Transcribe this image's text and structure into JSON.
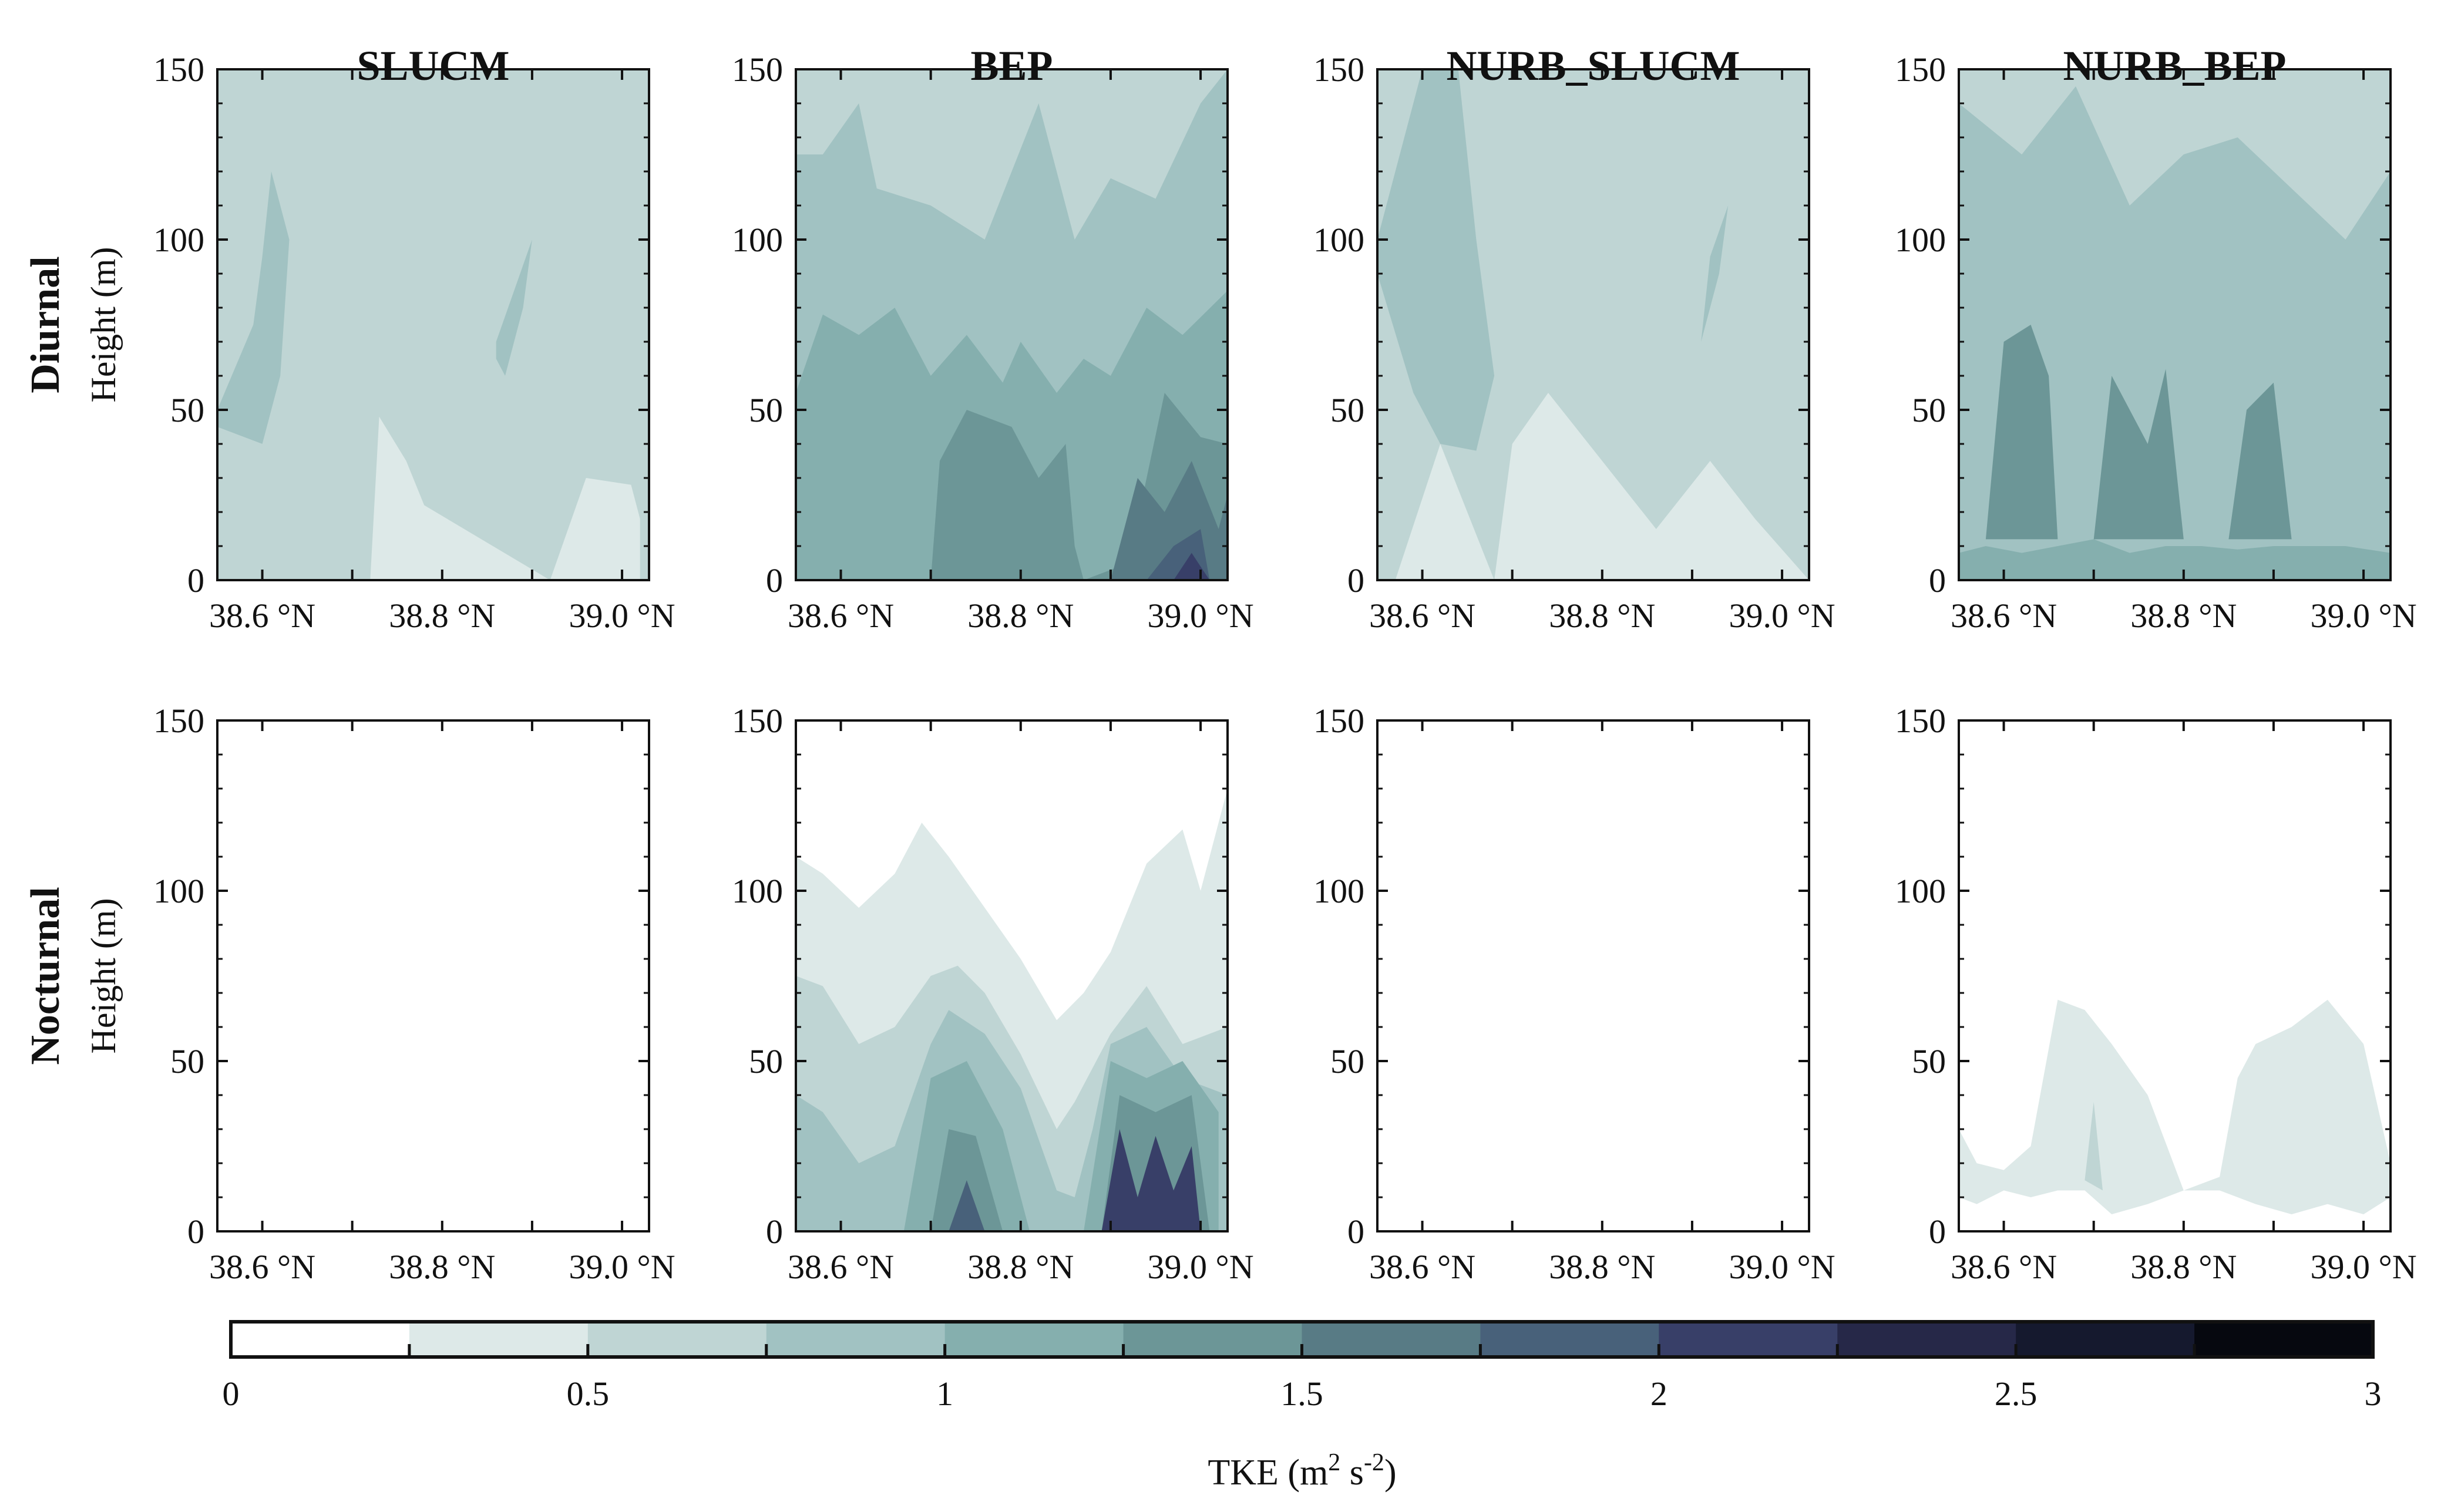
{
  "chart_data": {
    "type": "heatmap",
    "variable": "TKE",
    "colorbar": {
      "label": "TKE (m",
      "label_sup": "2",
      "label_mid": " s",
      "label_sup2": "-2",
      "label_end": ")",
      "min": 0,
      "max": 3,
      "step": 0.25,
      "tick_labels": [
        "0",
        "0.5",
        "1",
        "1.5",
        "2",
        "2.5",
        "3"
      ],
      "colors": [
        "#ffffff",
        "#dde9e8",
        "#bfd5d4",
        "#a1c2c2",
        "#85afae",
        "#6c9697",
        "#587b85",
        "#48617a",
        "#383f68",
        "#262848",
        "#15192e",
        "#06080f"
      ]
    },
    "columns": [
      "SLUCM",
      "BEP",
      "NURB_SLUCM",
      "NURB_BEP"
    ],
    "rows": [
      {
        "title": "Diurnal",
        "ylabel": "Height (m)"
      },
      {
        "title": "Nocturnal",
        "ylabel": "Height (m)"
      }
    ],
    "x_axis": {
      "range": [
        38.55,
        39.03
      ],
      "ticks": [
        38.6,
        38.8,
        39.0
      ],
      "tick_labels": [
        "38.6 °N",
        "38.8 °N",
        "39.0 °N"
      ]
    },
    "y_axis": {
      "range": [
        0,
        150
      ],
      "ticks": [
        0,
        50,
        100,
        150
      ],
      "tick_labels": [
        "0",
        "50",
        "100",
        "150"
      ]
    },
    "panels": [
      {
        "id": "diurnal-slucm",
        "bg_level": 2,
        "layers": [
          {
            "level": 1,
            "x": [
              38.72,
              38.73,
              38.76,
              38.78,
              38.92,
              38.96,
              39.01,
              39.02,
              39.02,
              38.8,
              38.62
            ],
            "h": [
              0,
              48,
              35,
              22,
              0,
              30,
              28,
              18,
              0,
              0,
              0
            ]
          },
          {
            "level": 3,
            "x": [
              38.55,
              38.59,
              38.6,
              38.61,
              38.63,
              38.62,
              38.6,
              38.58,
              38.55
            ],
            "h": [
              50,
              75,
              95,
              120,
              100,
              60,
              40,
              42,
              45
            ]
          },
          {
            "level": 3,
            "x": [
              38.86,
              38.88,
              38.9,
              38.89,
              38.87,
              38.86
            ],
            "h": [
              70,
              85,
              100,
              80,
              60,
              65
            ]
          }
        ]
      },
      {
        "id": "diurnal-bep",
        "bg_level": 3,
        "layers": [
          {
            "level": 2,
            "x": [
              38.55,
              38.58,
              38.62,
              38.64,
              38.7,
              38.76,
              38.82,
              38.86,
              38.9,
              38.95,
              39.0,
              39.03,
              39.03,
              38.55
            ],
            "h": [
              125,
              125,
              140,
              115,
              110,
              100,
              140,
              100,
              118,
              112,
              140,
              150,
              150,
              150
            ]
          },
          {
            "level": 4,
            "x": [
              38.55,
              38.58,
              38.62,
              38.66,
              38.7,
              38.74,
              38.78,
              38.8,
              38.84,
              38.87,
              38.9,
              38.94,
              38.98,
              39.03,
              39.03,
              38.55
            ],
            "h": [
              55,
              78,
              72,
              80,
              60,
              72,
              58,
              70,
              55,
              65,
              60,
              80,
              72,
              85,
              0,
              0
            ]
          },
          {
            "level": 5,
            "x": [
              38.7,
              38.71,
              38.74,
              38.79,
              38.82,
              38.85,
              38.86,
              38.87,
              38.92,
              38.96,
              39.0,
              39.03,
              39.03,
              38.7
            ],
            "h": [
              0,
              35,
              50,
              45,
              30,
              40,
              10,
              0,
              5,
              55,
              42,
              40,
              0,
              0
            ]
          },
          {
            "level": 6,
            "x": [
              38.9,
              38.93,
              38.96,
              38.99,
              39.02,
              39.03,
              39.03,
              38.9
            ],
            "h": [
              0,
              30,
              20,
              35,
              15,
              25,
              0,
              0
            ]
          },
          {
            "level": 7,
            "x": [
              38.94,
              38.97,
              39.0,
              39.01,
              38.94
            ],
            "h": [
              0,
              10,
              15,
              0,
              0
            ]
          },
          {
            "level": 8,
            "x": [
              38.97,
              38.99,
              39.01,
              38.97
            ],
            "h": [
              0,
              8,
              0,
              0
            ]
          }
        ]
      },
      {
        "id": "diurnal-nurb-slucm",
        "bg_level": 2,
        "layers": [
          {
            "level": 1,
            "x": [
              38.57,
              38.62,
              38.68,
              38.7,
              38.74,
              38.8,
              38.86,
              38.92,
              38.97,
              39.03,
              39.03,
              38.57
            ],
            "h": [
              0,
              40,
              0,
              40,
              55,
              35,
              15,
              35,
              18,
              0,
              0,
              0
            ]
          },
          {
            "level": 3,
            "x": [
              38.55,
              38.59,
              38.62,
              38.66,
              38.68,
              38.66,
              38.64,
              38.6,
              38.57,
              38.55
            ],
            "h": [
              90,
              55,
              40,
              38,
              60,
              100,
              150,
              150,
              120,
              100
            ]
          },
          {
            "level": 3,
            "x": [
              38.91,
              38.93,
              38.94,
              38.92,
              38.91
            ],
            "h": [
              70,
              90,
              110,
              95,
              70
            ]
          }
        ]
      },
      {
        "id": "diurnal-nurb-bep",
        "bg_level": 3,
        "layers": [
          {
            "level": 2,
            "x": [
              38.55,
              38.62,
              38.68,
              38.74,
              38.8,
              38.86,
              38.92,
              38.98,
              39.03,
              39.03,
              38.55
            ],
            "h": [
              140,
              125,
              145,
              110,
              125,
              130,
              115,
              100,
              120,
              150,
              150
            ]
          },
          {
            "level": 4,
            "x": [
              38.55,
              38.58,
              38.62,
              38.66,
              38.7,
              38.74,
              38.78,
              38.82,
              38.86,
              38.9,
              38.94,
              38.98,
              39.03,
              39.03,
              38.55
            ],
            "h": [
              8,
              10,
              8,
              10,
              12,
              8,
              10,
              10,
              9,
              10,
              10,
              10,
              8,
              0,
              0
            ]
          },
          {
            "level": 5,
            "x": [
              38.58,
              38.6,
              38.63,
              38.65,
              38.66,
              38.58
            ],
            "h": [
              12,
              70,
              75,
              60,
              12,
              12
            ]
          },
          {
            "level": 5,
            "x": [
              38.7,
              38.72,
              38.76,
              38.78,
              38.8,
              38.7
            ],
            "h": [
              12,
              60,
              40,
              62,
              12,
              12
            ]
          },
          {
            "level": 5,
            "x": [
              38.85,
              38.87,
              38.9,
              38.92,
              38.85
            ],
            "h": [
              12,
              50,
              58,
              12,
              12
            ]
          }
        ]
      },
      {
        "id": "nocturnal-slucm",
        "bg_level": 0,
        "layers": []
      },
      {
        "id": "nocturnal-bep",
        "bg_level": 0,
        "layers": [
          {
            "level": 1,
            "x": [
              38.55,
              38.58,
              38.62,
              38.66,
              38.69,
              38.72,
              38.76,
              38.8,
              38.84,
              38.87,
              38.9,
              38.94,
              38.98,
              39.0,
              39.03,
              39.03,
              38.55
            ],
            "h": [
              110,
              105,
              95,
              105,
              120,
              110,
              95,
              80,
              62,
              70,
              82,
              108,
              118,
              100,
              130,
              0,
              0
            ]
          },
          {
            "level": 2,
            "x": [
              38.55,
              38.58,
              38.62,
              38.66,
              38.7,
              38.73,
              38.76,
              38.8,
              38.84,
              38.86,
              38.9,
              38.94,
              38.98,
              39.03,
              39.03,
              38.55
            ],
            "h": [
              75,
              72,
              55,
              60,
              75,
              78,
              70,
              52,
              30,
              38,
              58,
              72,
              55,
              60,
              0,
              0
            ]
          },
          {
            "level": 3,
            "x": [
              38.55,
              38.58,
              38.62,
              38.66,
              38.7,
              38.72,
              38.76,
              38.8,
              38.84,
              38.86,
              38.88,
              38.9,
              38.94,
              38.98,
              39.03,
              39.03,
              38.55
            ],
            "h": [
              40,
              35,
              20,
              25,
              55,
              65,
              58,
              42,
              12,
              10,
              30,
              55,
              60,
              45,
              40,
              0,
              0
            ]
          },
          {
            "level": 4,
            "x": [
              38.67,
              38.7,
              38.74,
              38.78,
              38.81,
              38.67
            ],
            "h": [
              0,
              45,
              50,
              30,
              0,
              0
            ]
          },
          {
            "level": 4,
            "x": [
              38.87,
              38.9,
              38.94,
              38.98,
              39.02,
              39.02,
              38.87
            ],
            "h": [
              0,
              50,
              45,
              50,
              35,
              0,
              0
            ]
          },
          {
            "level": 5,
            "x": [
              38.7,
              38.72,
              38.75,
              38.78,
              38.7
            ],
            "h": [
              0,
              30,
              28,
              0,
              0
            ]
          },
          {
            "level": 5,
            "x": [
              38.89,
              38.91,
              38.95,
              38.99,
              39.01,
              38.89
            ],
            "h": [
              0,
              40,
              35,
              40,
              0,
              0
            ]
          },
          {
            "level": 7,
            "x": [
              38.72,
              38.74,
              38.76,
              38.72
            ],
            "h": [
              0,
              15,
              0,
              0
            ]
          },
          {
            "level": 8,
            "x": [
              38.89,
              38.91,
              38.93,
              38.95,
              38.97,
              38.99,
              39.0,
              38.89
            ],
            "h": [
              0,
              30,
              10,
              28,
              12,
              25,
              0,
              0
            ]
          }
        ]
      },
      {
        "id": "nocturnal-nurb-slucm",
        "bg_level": 0,
        "layers": []
      },
      {
        "id": "nocturnal-nurb-bep",
        "bg_level": 0,
        "layers": [
          {
            "level": 1,
            "x": [
              38.55,
              38.57,
              38.6,
              38.63,
              38.66,
              38.69,
              38.72,
              38.76,
              38.8,
              38.84,
              38.86,
              38.88,
              38.92,
              38.96,
              39.0,
              39.03,
              39.03,
              39.0,
              38.96,
              38.92,
              38.88,
              38.84,
              38.8,
              38.76,
              38.72,
              38.69,
              38.66,
              38.63,
              38.6,
              38.57,
              38.55
            ],
            "h": [
              30,
              20,
              18,
              25,
              68,
              65,
              55,
              40,
              12,
              16,
              45,
              55,
              60,
              68,
              55,
              20,
              10,
              5,
              8,
              5,
              8,
              12,
              12,
              8,
              5,
              12,
              12,
              10,
              12,
              8,
              10
            ]
          },
          {
            "level": 2,
            "x": [
              38.69,
              38.7,
              38.71,
              38.69
            ],
            "h": [
              15,
              38,
              12,
              15
            ]
          }
        ]
      }
    ]
  }
}
